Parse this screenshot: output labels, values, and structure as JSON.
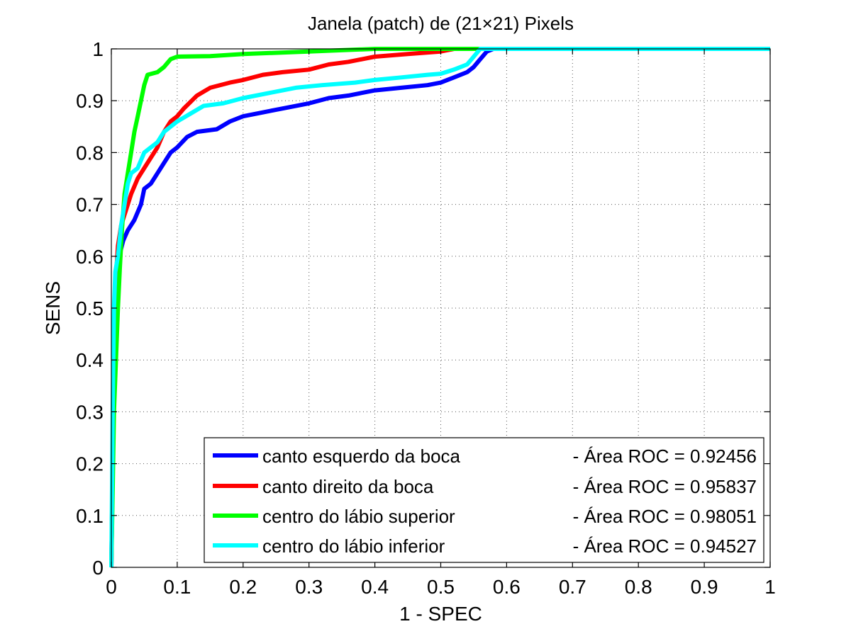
{
  "chart_data": {
    "type": "line",
    "title": "Janela (patch) de (21×21) Pixels",
    "xlabel": "1 - SPEC",
    "ylabel": "SENS",
    "xlim": [
      0,
      1
    ],
    "ylim": [
      0,
      1
    ],
    "xticks": [
      0,
      0.1,
      0.2,
      0.3,
      0.4,
      0.5,
      0.6,
      0.7,
      0.8,
      0.9,
      1
    ],
    "yticks": [
      0,
      0.1,
      0.2,
      0.3,
      0.4,
      0.5,
      0.6,
      0.7,
      0.8,
      0.9,
      1
    ],
    "xtick_labels": [
      "0",
      "0.1",
      "0.2",
      "0.3",
      "0.4",
      "0.5",
      "0.6",
      "0.7",
      "0.8",
      "0.9",
      "1"
    ],
    "ytick_labels": [
      "0",
      "0.1",
      "0.2",
      "0.3",
      "0.4",
      "0.5",
      "0.6",
      "0.7",
      "0.8",
      "0.9",
      "1"
    ],
    "grid": true,
    "legend_position": "bottom-right",
    "series": [
      {
        "name": "canto esquerdo da boca",
        "legend_suffix": "- Área ROC = 0.92456",
        "color": "#0000ff",
        "points": [
          [
            0,
            0
          ],
          [
            0.002,
            0.2
          ],
          [
            0.005,
            0.45
          ],
          [
            0.008,
            0.55
          ],
          [
            0.012,
            0.6
          ],
          [
            0.018,
            0.63
          ],
          [
            0.025,
            0.65
          ],
          [
            0.035,
            0.67
          ],
          [
            0.045,
            0.7
          ],
          [
            0.05,
            0.73
          ],
          [
            0.06,
            0.74
          ],
          [
            0.07,
            0.76
          ],
          [
            0.08,
            0.78
          ],
          [
            0.09,
            0.8
          ],
          [
            0.1,
            0.81
          ],
          [
            0.115,
            0.83
          ],
          [
            0.13,
            0.84
          ],
          [
            0.16,
            0.845
          ],
          [
            0.18,
            0.86
          ],
          [
            0.2,
            0.87
          ],
          [
            0.24,
            0.88
          ],
          [
            0.26,
            0.885
          ],
          [
            0.3,
            0.895
          ],
          [
            0.33,
            0.905
          ],
          [
            0.36,
            0.91
          ],
          [
            0.38,
            0.915
          ],
          [
            0.4,
            0.92
          ],
          [
            0.44,
            0.925
          ],
          [
            0.48,
            0.93
          ],
          [
            0.5,
            0.935
          ],
          [
            0.52,
            0.945
          ],
          [
            0.54,
            0.955
          ],
          [
            0.55,
            0.965
          ],
          [
            0.56,
            0.98
          ],
          [
            0.57,
            0.995
          ],
          [
            0.58,
            1
          ],
          [
            1,
            1
          ]
        ]
      },
      {
        "name": "canto direito da boca",
        "legend_suffix": "- Área ROC = 0.95837",
        "color": "#ff0000",
        "points": [
          [
            0,
            0
          ],
          [
            0.002,
            0.2
          ],
          [
            0.004,
            0.45
          ],
          [
            0.007,
            0.56
          ],
          [
            0.01,
            0.62
          ],
          [
            0.015,
            0.66
          ],
          [
            0.02,
            0.68
          ],
          [
            0.03,
            0.72
          ],
          [
            0.04,
            0.75
          ],
          [
            0.05,
            0.77
          ],
          [
            0.06,
            0.79
          ],
          [
            0.07,
            0.81
          ],
          [
            0.08,
            0.84
          ],
          [
            0.09,
            0.86
          ],
          [
            0.1,
            0.87
          ],
          [
            0.11,
            0.885
          ],
          [
            0.13,
            0.91
          ],
          [
            0.15,
            0.925
          ],
          [
            0.18,
            0.935
          ],
          [
            0.2,
            0.94
          ],
          [
            0.23,
            0.95
          ],
          [
            0.26,
            0.955
          ],
          [
            0.3,
            0.96
          ],
          [
            0.33,
            0.97
          ],
          [
            0.36,
            0.975
          ],
          [
            0.4,
            0.985
          ],
          [
            0.45,
            0.99
          ],
          [
            0.5,
            0.995
          ],
          [
            0.52,
            1
          ],
          [
            1,
            1
          ]
        ]
      },
      {
        "name": "centro do lábio superior",
        "legend_suffix": "- Área ROC = 0.98051",
        "color": "#00ff00",
        "points": [
          [
            0,
            0
          ],
          [
            0.002,
            0.15
          ],
          [
            0.004,
            0.3
          ],
          [
            0.007,
            0.4
          ],
          [
            0.01,
            0.5
          ],
          [
            0.013,
            0.58
          ],
          [
            0.016,
            0.65
          ],
          [
            0.02,
            0.72
          ],
          [
            0.025,
            0.76
          ],
          [
            0.03,
            0.8
          ],
          [
            0.035,
            0.84
          ],
          [
            0.04,
            0.87
          ],
          [
            0.045,
            0.9
          ],
          [
            0.05,
            0.93
          ],
          [
            0.055,
            0.95
          ],
          [
            0.07,
            0.955
          ],
          [
            0.08,
            0.965
          ],
          [
            0.09,
            0.98
          ],
          [
            0.1,
            0.985
          ],
          [
            0.15,
            0.986
          ],
          [
            0.2,
            0.99
          ],
          [
            0.3,
            0.995
          ],
          [
            0.4,
            1
          ],
          [
            1,
            1
          ]
        ]
      },
      {
        "name": "centro do lábio inferior",
        "legend_suffix": "- Área ROC = 0.94527",
        "color": "#00ffff",
        "points": [
          [
            0,
            0
          ],
          [
            0.002,
            0.3
          ],
          [
            0.004,
            0.5
          ],
          [
            0.006,
            0.57
          ],
          [
            0.01,
            0.6
          ],
          [
            0.015,
            0.66
          ],
          [
            0.02,
            0.7
          ],
          [
            0.025,
            0.74
          ],
          [
            0.03,
            0.76
          ],
          [
            0.04,
            0.77
          ],
          [
            0.05,
            0.8
          ],
          [
            0.06,
            0.81
          ],
          [
            0.07,
            0.82
          ],
          [
            0.08,
            0.84
          ],
          [
            0.09,
            0.85
          ],
          [
            0.1,
            0.86
          ],
          [
            0.12,
            0.875
          ],
          [
            0.14,
            0.89
          ],
          [
            0.17,
            0.895
          ],
          [
            0.2,
            0.905
          ],
          [
            0.24,
            0.915
          ],
          [
            0.28,
            0.925
          ],
          [
            0.32,
            0.93
          ],
          [
            0.37,
            0.935
          ],
          [
            0.4,
            0.94
          ],
          [
            0.44,
            0.945
          ],
          [
            0.48,
            0.95
          ],
          [
            0.5,
            0.952
          ],
          [
            0.52,
            0.96
          ],
          [
            0.54,
            0.97
          ],
          [
            0.55,
            0.985
          ],
          [
            0.56,
            1
          ],
          [
            1,
            1
          ]
        ]
      }
    ]
  }
}
